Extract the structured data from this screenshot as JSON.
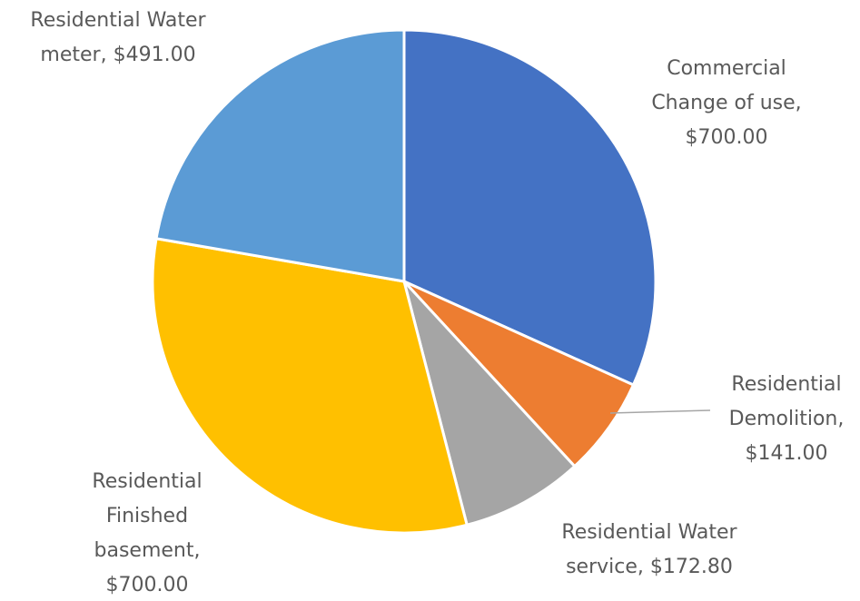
{
  "chart_data": {
    "type": "pie",
    "categories": [
      "Commercial Change of use,",
      "Residential Demolition,",
      "Residential Water service,",
      "Residential Finished basement,",
      "Residential Water meter,"
    ],
    "values": [
      700,
      141,
      172.8,
      700,
      491
    ],
    "value_labels": [
      "$700.00",
      "$141.00",
      "$172.80",
      "$700.00",
      "$491.00"
    ],
    "colors": [
      "#4472c4",
      "#ed7d31",
      "#a5a5a5",
      "#ffc000",
      "#5b9bd5"
    ]
  }
}
